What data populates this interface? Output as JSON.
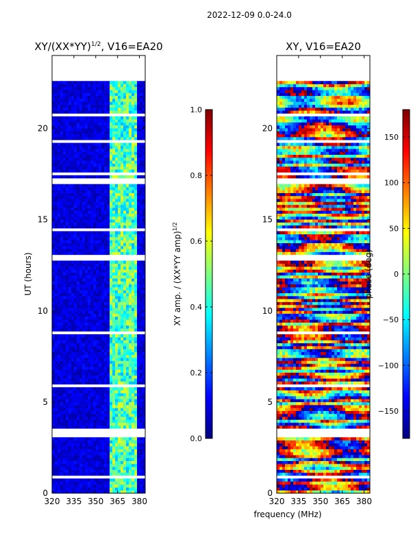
{
  "figure": {
    "suptitle": "2022-12-09 0.0-24.0",
    "xlabel_shared": "frequency (MHz)"
  },
  "colors": {
    "gap": "#ffffff",
    "frame": "#000000",
    "jet_stops": [
      "#00007f",
      "#0000ff",
      "#007fff",
      "#00ffff",
      "#7fff7f",
      "#ffff00",
      "#ff7f00",
      "#ff0000",
      "#7f0000"
    ]
  },
  "chart_data": [
    {
      "type": "heatmap",
      "title_main": "XY/(XX*YY)",
      "title_sup": "1/2",
      "title_tail": ", V16=EA20",
      "xlabel": "",
      "ylabel": "UT (hours)",
      "xlim": [
        320,
        384
      ],
      "ylim": [
        0,
        24
      ],
      "xticks": [
        320,
        335,
        350,
        365,
        380
      ],
      "yticks": [
        0,
        5,
        10,
        15,
        20
      ],
      "colorbar": {
        "label_main": "XY amp. / (XX*YY amp)",
        "label_sup": "1/2",
        "range": [
          0.0,
          1.0
        ],
        "ticks": [
          "0.0",
          "0.2",
          "0.4",
          "0.6",
          "0.8",
          "1.0"
        ],
        "tick_values": [
          0.0,
          0.2,
          0.4,
          0.6,
          0.8,
          1.0
        ]
      },
      "data_hours": [
        0.0,
        22.6
      ],
      "gap_hours": [
        [
          22.6,
          24.0
        ],
        [
          3.0,
          3.6
        ],
        [
          12.8,
          13.0
        ],
        [
          14.4,
          14.6
        ],
        [
          16.9,
          17.2
        ],
        [
          19.2,
          19.4
        ],
        [
          20.6,
          20.8
        ],
        [
          5.8,
          6.0
        ],
        [
          8.7,
          8.8
        ],
        [
          10.9,
          11.0
        ],
        [
          17.5,
          17.6
        ],
        [
          18.0,
          18.1
        ],
        [
          0.8,
          0.9
        ]
      ],
      "bright_channel_mhz": [
        360,
        378
      ],
      "description_values": "background ~0.05-0.15, channels 360-378 MHz ~0.3-0.6"
    },
    {
      "type": "heatmap",
      "title_main": "XY, V16=EA20",
      "xlabel": "frequency (MHz)",
      "ylabel": "",
      "xlim": [
        320,
        384
      ],
      "ylim": [
        0,
        24
      ],
      "xticks": [
        320,
        335,
        350,
        365,
        380
      ],
      "yticks": [
        0,
        5,
        10,
        15,
        20
      ],
      "colorbar": {
        "label_main": "phase (deg)",
        "range": [
          -180,
          180
        ],
        "ticks": [
          "−150",
          "−100",
          "−50",
          "0",
          "50",
          "100",
          "150"
        ],
        "tick_values": [
          -150,
          -100,
          -50,
          0,
          50,
          100,
          150
        ]
      },
      "data_hours": [
        0.0,
        22.6
      ],
      "gap_hours": [
        [
          22.6,
          24.0
        ],
        [
          3.0,
          3.6
        ],
        [
          12.8,
          13.0
        ],
        [
          14.4,
          14.6
        ],
        [
          16.9,
          17.2
        ],
        [
          19.2,
          19.4
        ],
        [
          20.6,
          20.8
        ],
        [
          5.8,
          6.0
        ],
        [
          8.7,
          8.8
        ],
        [
          10.9,
          11.0
        ],
        [
          17.5,
          17.6
        ],
        [
          18.0,
          18.1
        ],
        [
          0.8,
          0.9
        ]
      ],
      "description_values": "phase varies −180 to 180 deg across time and frequency"
    }
  ]
}
